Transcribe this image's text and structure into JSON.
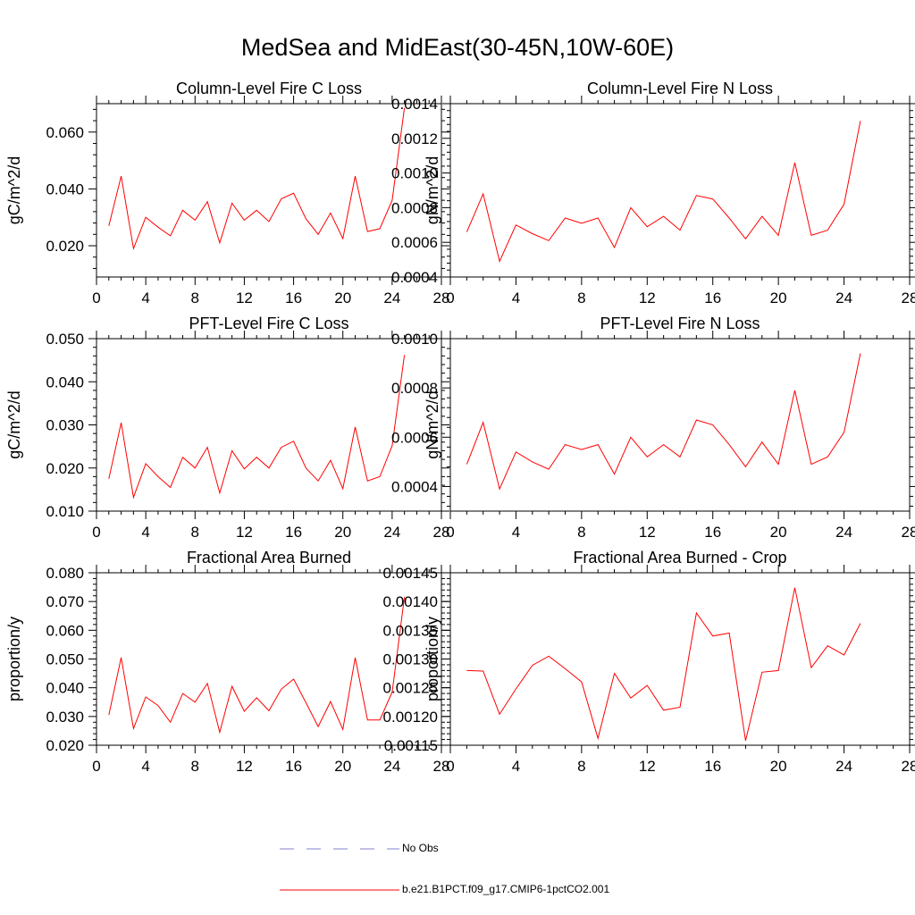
{
  "title": "MedSea and MidEast(30-45N,10W-60E)",
  "colors": {
    "model_line": "#ff0000",
    "obs_line": "#8080d0",
    "axis": "#000000"
  },
  "legend": {
    "obs_label": "No Obs",
    "model_label": "b.e21.B1PCT.f09_g17.CMIP6-1pctCO2.001"
  },
  "chart_data": [
    {
      "type": "line",
      "title": "Column-Level Fire C Loss",
      "ylabel": "gC/m^2/d",
      "xlim": [
        0,
        28
      ],
      "xticks": [
        0,
        4,
        8,
        12,
        16,
        20,
        24,
        28
      ],
      "ylim": [
        0.009,
        0.07
      ],
      "yticks": [
        0.02,
        0.04,
        0.06
      ],
      "ytick_labels": [
        "0.020",
        "0.040",
        "0.060"
      ],
      "x": [
        1,
        2,
        3,
        4,
        5,
        6,
        7,
        8,
        9,
        10,
        11,
        12,
        13,
        14,
        15,
        16,
        17,
        18,
        19,
        20,
        21,
        22,
        23,
        24,
        25
      ],
      "series": [
        {
          "name": "b.e21.B1PCT.f09_g17.CMIP6-1pctCO2.001",
          "values": [
            0.027,
            0.0445,
            0.019,
            0.03,
            0.0265,
            0.0235,
            0.0325,
            0.029,
            0.0355,
            0.021,
            0.035,
            0.029,
            0.0325,
            0.0285,
            0.0365,
            0.0385,
            0.0295,
            0.024,
            0.0315,
            0.0225,
            0.0445,
            0.025,
            0.026,
            0.036,
            0.0685
          ]
        }
      ]
    },
    {
      "type": "line",
      "title": "Column-Level Fire N Loss",
      "ylabel": "gN/m^2/d",
      "xlim": [
        0,
        28
      ],
      "xticks": [
        0,
        4,
        8,
        12,
        16,
        20,
        24,
        28
      ],
      "ylim": [
        0.0004,
        0.0014
      ],
      "yticks": [
        0.0004,
        0.0006,
        0.0008,
        0.001,
        0.0012,
        0.0014
      ],
      "ytick_labels": [
        "0.0004",
        "0.0006",
        "0.0008",
        "0.0010",
        "0.0012",
        "0.0014"
      ],
      "x": [
        1,
        2,
        3,
        4,
        5,
        6,
        7,
        8,
        9,
        10,
        11,
        12,
        13,
        14,
        15,
        16,
        17,
        18,
        19,
        20,
        21,
        22,
        23,
        24,
        25
      ],
      "series": [
        {
          "name": "b.e21.B1PCT.f09_g17.CMIP6-1pctCO2.001",
          "values": [
            0.00066,
            0.00088,
            0.00049,
            0.0007,
            0.00065,
            0.00061,
            0.00074,
            0.00071,
            0.00074,
            0.00057,
            0.0008,
            0.00069,
            0.00075,
            0.00067,
            0.00087,
            0.00085,
            0.00074,
            0.00062,
            0.00075,
            0.00064,
            0.00106,
            0.00064,
            0.00067,
            0.00082,
            0.0013
          ]
        }
      ]
    },
    {
      "type": "line",
      "title": "PFT-Level Fire C Loss",
      "ylabel": "gC/m^2/d",
      "xlim": [
        0,
        28
      ],
      "xticks": [
        0,
        4,
        8,
        12,
        16,
        20,
        24,
        28
      ],
      "ylim": [
        0.01,
        0.05
      ],
      "yticks": [
        0.01,
        0.02,
        0.03,
        0.04,
        0.05
      ],
      "ytick_labels": [
        "0.010",
        "0.020",
        "0.030",
        "0.040",
        "0.050"
      ],
      "x": [
        1,
        2,
        3,
        4,
        5,
        6,
        7,
        8,
        9,
        10,
        11,
        12,
        13,
        14,
        15,
        16,
        17,
        18,
        19,
        20,
        21,
        22,
        23,
        24,
        25
      ],
      "series": [
        {
          "name": "b.e21.B1PCT.f09_g17.CMIP6-1pctCO2.001",
          "values": [
            0.0175,
            0.0305,
            0.0132,
            0.021,
            0.018,
            0.0155,
            0.0225,
            0.02,
            0.0248,
            0.0142,
            0.024,
            0.0198,
            0.0225,
            0.02,
            0.0248,
            0.0262,
            0.02,
            0.017,
            0.0218,
            0.0152,
            0.0295,
            0.017,
            0.018,
            0.0252,
            0.0462
          ]
        }
      ]
    },
    {
      "type": "line",
      "title": "PFT-Level Fire N Loss",
      "ylabel": "gN/m^2/d",
      "xlim": [
        0,
        28
      ],
      "xticks": [
        0,
        4,
        8,
        12,
        16,
        20,
        24,
        28
      ],
      "ylim": [
        0.0003,
        0.001
      ],
      "yticks": [
        0.0004,
        0.0006,
        0.0008,
        0.001
      ],
      "ytick_labels": [
        "0.0004",
        "0.0006",
        "0.0008",
        "0.0010"
      ],
      "x": [
        1,
        2,
        3,
        4,
        5,
        6,
        7,
        8,
        9,
        10,
        11,
        12,
        13,
        14,
        15,
        16,
        17,
        18,
        19,
        20,
        21,
        22,
        23,
        24,
        25
      ],
      "series": [
        {
          "name": "b.e21.B1PCT.f09_g17.CMIP6-1pctCO2.001",
          "values": [
            0.00049,
            0.00066,
            0.00039,
            0.00054,
            0.0005,
            0.00047,
            0.00057,
            0.00055,
            0.00057,
            0.00045,
            0.0006,
            0.00052,
            0.00057,
            0.00052,
            0.00067,
            0.00065,
            0.00057,
            0.00048,
            0.00058,
            0.00049,
            0.00079,
            0.00049,
            0.00052,
            0.00062,
            0.00094
          ]
        }
      ]
    },
    {
      "type": "line",
      "title": "Fractional Area Burned",
      "ylabel": "proportion/y",
      "xlim": [
        0,
        28
      ],
      "xticks": [
        0,
        4,
        8,
        12,
        16,
        20,
        24,
        28
      ],
      "ylim": [
        0.02,
        0.08
      ],
      "yticks": [
        0.02,
        0.03,
        0.04,
        0.05,
        0.06,
        0.07,
        0.08
      ],
      "ytick_labels": [
        "0.020",
        "0.030",
        "0.040",
        "0.050",
        "0.060",
        "0.070",
        "0.080"
      ],
      "x": [
        1,
        2,
        3,
        4,
        5,
        6,
        7,
        8,
        9,
        10,
        11,
        12,
        13,
        14,
        15,
        16,
        17,
        18,
        19,
        20,
        21,
        22,
        23,
        24,
        25
      ],
      "series": [
        {
          "name": "b.e21.B1PCT.f09_g17.CMIP6-1pctCO2.001",
          "values": [
            0.0305,
            0.0505,
            0.0258,
            0.0368,
            0.0338,
            0.028,
            0.038,
            0.035,
            0.0415,
            0.0245,
            0.0405,
            0.0318,
            0.0365,
            0.032,
            0.0395,
            0.043,
            0.0348,
            0.0265,
            0.0352,
            0.0255,
            0.0505,
            0.0288,
            0.0288,
            0.0385,
            0.0715
          ]
        }
      ]
    },
    {
      "type": "line",
      "title": "Fractional Area Burned - Crop",
      "ylabel": "proportion/y",
      "xlim": [
        0,
        28
      ],
      "xticks": [
        0,
        4,
        8,
        12,
        16,
        20,
        24,
        28
      ],
      "ylim": [
        0.00115,
        0.00145
      ],
      "yticks": [
        0.00115,
        0.0012,
        0.00125,
        0.0013,
        0.00135,
        0.0014,
        0.00145
      ],
      "ytick_labels": [
        "0.00115",
        "0.00120",
        "0.00125",
        "0.00130",
        "0.00135",
        "0.00140",
        "0.00145"
      ],
      "x": [
        1,
        2,
        3,
        4,
        5,
        6,
        7,
        8,
        9,
        10,
        11,
        12,
        13,
        14,
        15,
        16,
        17,
        18,
        19,
        20,
        21,
        22,
        23,
        24,
        25
      ],
      "series": [
        {
          "name": "b.e21.B1PCT.f09_g17.CMIP6-1pctCO2.001",
          "values": [
            0.00128,
            0.001279,
            0.001204,
            0.001248,
            0.001289,
            0.001305,
            0.001283,
            0.00126,
            0.001162,
            0.001275,
            0.001232,
            0.001254,
            0.001211,
            0.001216,
            0.00138,
            0.00134,
            0.001345,
            0.001158,
            0.001277,
            0.00128,
            0.001424,
            0.001285,
            0.001323,
            0.001307,
            0.001362
          ]
        }
      ]
    }
  ]
}
